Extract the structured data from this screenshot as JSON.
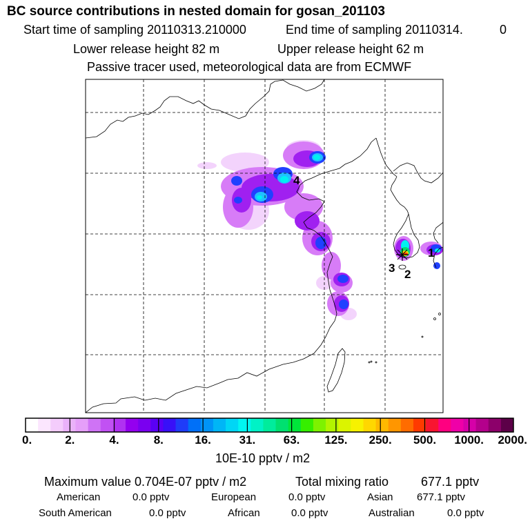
{
  "header": {
    "title": "BC  source contributions in nested domain for gosan_201103",
    "start_label": "Start time of sampling 20110313.210000",
    "end_label": "End time of sampling 20110314.",
    "end_value": "0",
    "lower_label": "Lower release height   82 m",
    "upper_label": "Upper release height   62 m",
    "tracer_note": "Passive tracer used, meteorological data are from ECMWF"
  },
  "map": {
    "markers": [
      {
        "label": "1"
      },
      {
        "label": "2"
      },
      {
        "label": "3"
      },
      {
        "label": "4"
      }
    ]
  },
  "colorbar": {
    "tick_labels": [
      "0.",
      "2.",
      "4.",
      "8.",
      "16.",
      "31.",
      "63.",
      "125.",
      "250.",
      "500.",
      "1000.",
      "2000."
    ],
    "colors": [
      "#ffffff",
      "#fbe6fe",
      "#f4ccfc",
      "#eab2fa",
      "#e59ff9",
      "#cf73f5",
      "#c151f3",
      "#b032f1",
      "#9400ef",
      "#7a00f0",
      "#5a00f5",
      "#3810f8",
      "#1f3cf9",
      "#0070f8",
      "#0094f7",
      "#00b6f6",
      "#00d6f5",
      "#00f6f2",
      "#00f2c6",
      "#00ec9c",
      "#00e070",
      "#00e63a",
      "#36ef00",
      "#7ef200",
      "#b2f400",
      "#dbf400",
      "#f7f200",
      "#ffd700",
      "#ffb900",
      "#ff9600",
      "#ff6c00",
      "#ff3a00",
      "#f81530",
      "#ff0080",
      "#ef00a8",
      "#d600a8",
      "#b4008c",
      "#8c006a",
      "#5c0048"
    ],
    "unit": "10E-10 pptv / m2"
  },
  "stats": {
    "max_label": "Maximum value  0.704E-07 pptv / m2",
    "total_label": "Total mixing ratio",
    "total_value": "677.1 pptv",
    "american_label": "American",
    "american_value": "0.0 pptv",
    "european_label": "European",
    "european_value": "0.0 pptv",
    "asian_label": "Asian",
    "asian_value": "677.1 pptv",
    "south_american_label": "South American",
    "south_american_value": "0.0 pptv",
    "african_label": "African",
    "african_value": "0.0 pptv",
    "australian_label": "Australian",
    "australian_value": "0.0 pptv"
  }
}
